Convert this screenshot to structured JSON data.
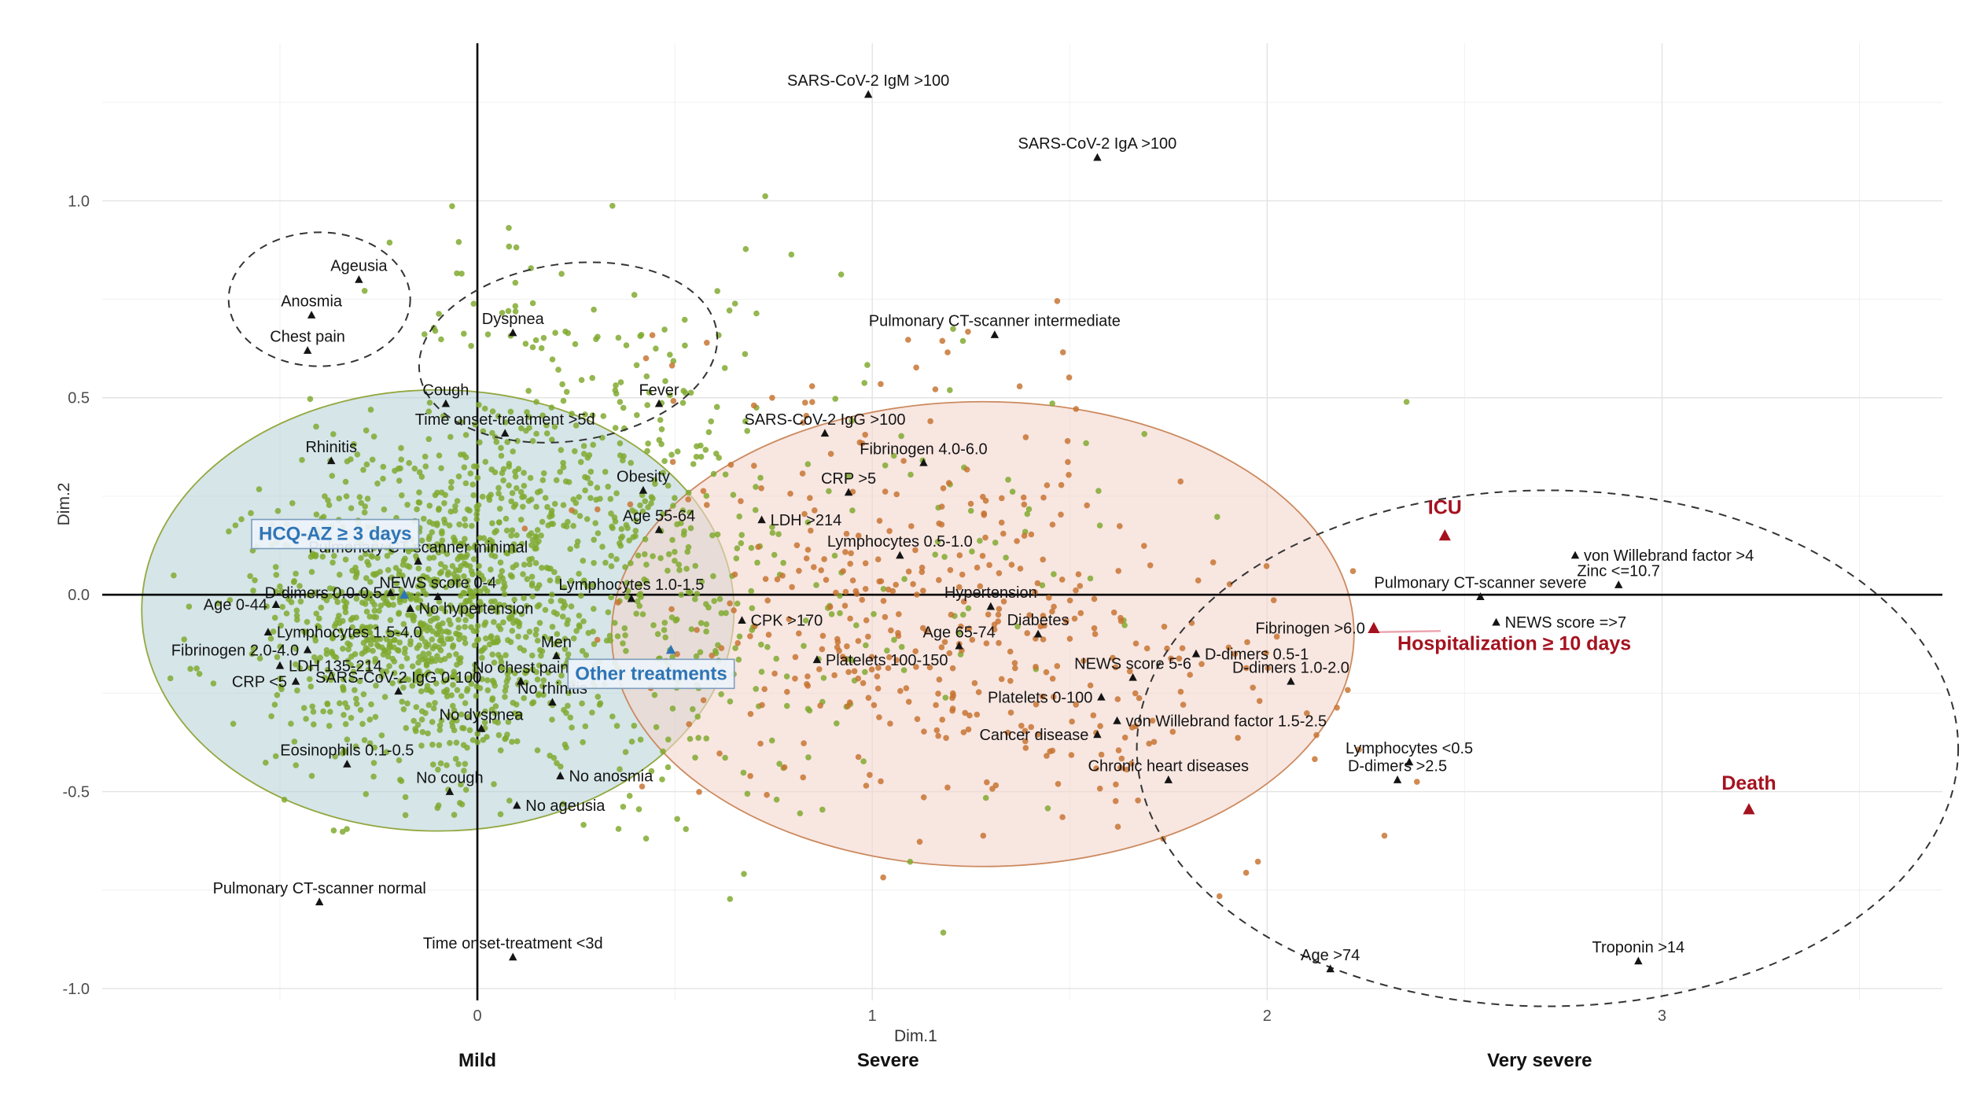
{
  "chart_data": {
    "type": "scatter",
    "xlabel": "Dim.1",
    "ylabel": "Dim.2",
    "xlim": [
      -0.95,
      3.71
    ],
    "ylim": [
      -1.03,
      1.4
    ],
    "seed": 1234567,
    "x_ticks": [
      {
        "value": 0,
        "label": "0"
      },
      {
        "value": 1,
        "label": "1"
      },
      {
        "value": 2,
        "label": "2"
      },
      {
        "value": 3,
        "label": "3"
      }
    ],
    "y_ticks": [
      {
        "value": 1.0,
        "label": "1.0"
      },
      {
        "value": 0.5,
        "label": "0.5"
      },
      {
        "value": 0.0,
        "label": "0.0"
      },
      {
        "value": -0.5,
        "label": "-0.5"
      },
      {
        "value": -1.0,
        "label": "-1.0"
      }
    ],
    "x_minor_ticks": [
      -0.5,
      0.5,
      1.5,
      2.5,
      3.5
    ],
    "y_minor_ticks": [
      -0.75,
      -0.25,
      0.25,
      0.75,
      1.25
    ],
    "severity_labels": [
      {
        "label": "Mild",
        "x": 0.0
      },
      {
        "label": "Severe",
        "x": 1.04
      },
      {
        "label": "Very severe",
        "x": 2.69
      }
    ],
    "colors": {
      "green_points": "#7fa92e",
      "orange_points": "#c77331",
      "category_marker": "#141414",
      "category_text": "#141414",
      "outcome": "#a5121f",
      "treatment": "#2e75b6",
      "leader_line": "#eaa4ae",
      "dashed_ellipse": "#333333",
      "grid_major": "#e3e3e3",
      "grid_minor": "#f0f0f0",
      "axis_line": "#000000",
      "tick_text": "#4d4d4d",
      "ellipse_mild_fill": "#aecdd3",
      "ellipse_mild_stroke": "#93a83f",
      "ellipse_severe_fill": "#f3d6cd",
      "ellipse_severe_stroke": "#cc8a5f"
    },
    "ellipses": [
      {
        "name": "mild-group-ellipse",
        "style": "filled",
        "cx": -0.1,
        "cy": -0.04,
        "rx": 0.75,
        "ry": 0.56,
        "fill": "#aecdd3",
        "opacity": 0.52,
        "stroke": "#93a83f"
      },
      {
        "name": "severe-group-ellipse",
        "style": "filled",
        "cx": 1.28,
        "cy": -0.1,
        "rx": 0.94,
        "ry": 0.59,
        "fill": "#f3d6cd",
        "opacity": 0.6,
        "stroke": "#cc8a5f"
      },
      {
        "name": "anosmia-cluster-ellipse",
        "style": "dashed",
        "cx": -0.4,
        "cy": 0.75,
        "rx": 0.23,
        "ry": 0.17,
        "rotate": 0
      },
      {
        "name": "respiratory-cluster-ellipse",
        "style": "dashed",
        "cx": 0.23,
        "cy": 0.615,
        "rx": 0.38,
        "ry": 0.225,
        "rotate": -8
      },
      {
        "name": "very-severe-ellipse",
        "style": "dashed",
        "cx": 2.71,
        "cy": -0.39,
        "rx": 1.04,
        "ry": 0.655,
        "rotate": 0
      }
    ],
    "point_clusters": [
      {
        "color": "#7fa92e",
        "n": 760,
        "cx": -0.17,
        "cy": -0.07,
        "sx": 0.2,
        "sy": 0.19
      },
      {
        "color": "#7fa92e",
        "n": 430,
        "cx": 0.08,
        "cy": 0.06,
        "sx": 0.22,
        "sy": 0.24
      },
      {
        "color": "#7fa92e",
        "n": 210,
        "cx": 0.33,
        "cy": 0.24,
        "sx": 0.26,
        "sy": 0.22
      },
      {
        "color": "#7fa92e",
        "n": 140,
        "cx": 0.55,
        "cy": -0.17,
        "sx": 0.33,
        "sy": 0.24
      },
      {
        "color": "#7fa92e",
        "n": 95,
        "cx": 0.85,
        "cy": 0.14,
        "sx": 0.45,
        "sy": 0.3
      },
      {
        "color": "#7fa92e",
        "n": 38,
        "cx": 0.28,
        "cy": 0.72,
        "sx": 0.28,
        "sy": 0.14
      },
      {
        "color": "#c77331",
        "n": 200,
        "cx": 1.0,
        "cy": -0.05,
        "sx": 0.3,
        "sy": 0.25
      },
      {
        "color": "#c77331",
        "n": 125,
        "cx": 1.35,
        "cy": -0.16,
        "sx": 0.3,
        "sy": 0.22
      },
      {
        "color": "#c77331",
        "n": 48,
        "cx": 1.72,
        "cy": -0.25,
        "sx": 0.26,
        "sy": 0.2
      },
      {
        "color": "#c77331",
        "n": 18,
        "cx": 0.82,
        "cy": 0.42,
        "sx": 0.28,
        "sy": 0.16
      },
      {
        "color": "#c77331",
        "n": 10,
        "cx": 1.35,
        "cy": 0.55,
        "sx": 0.22,
        "sy": 0.12
      },
      {
        "color": "#c77331",
        "n": 8,
        "cx": 2.15,
        "cy": -0.18,
        "sx": 0.18,
        "sy": 0.16
      }
    ],
    "categories": [
      {
        "label": "SARS-CoV-2 IgM >100",
        "x": 0.99,
        "y": 1.27
      },
      {
        "label": "SARS-CoV-2 IgA >100",
        "x": 1.57,
        "y": 1.11
      },
      {
        "label": "Ageusia",
        "x": -0.3,
        "y": 0.8
      },
      {
        "label": "Anosmia",
        "x": -0.42,
        "y": 0.71
      },
      {
        "label": "Chest pain",
        "x": -0.43,
        "y": 0.62
      },
      {
        "label": "Dyspnea",
        "x": 0.09,
        "y": 0.665
      },
      {
        "label": "Pulmonary CT-scanner intermediate",
        "x": 1.31,
        "y": 0.66
      },
      {
        "label": "Cough",
        "x": -0.08,
        "y": 0.485
      },
      {
        "label": "Fever",
        "x": 0.46,
        "y": 0.485
      },
      {
        "label": "Time onset-treatment >5d",
        "x": 0.07,
        "y": 0.41
      },
      {
        "label": "SARS-CoV-2 IgG >100",
        "x": 0.88,
        "y": 0.41
      },
      {
        "label": "Rhinitis",
        "x": -0.37,
        "y": 0.34
      },
      {
        "label": "Fibrinogen 4.0-6.0",
        "x": 1.13,
        "y": 0.335
      },
      {
        "label": "Obesity",
        "x": 0.42,
        "y": 0.265
      },
      {
        "label": "CRP >5",
        "x": 0.94,
        "y": 0.26
      },
      {
        "label": "Age 55-64",
        "x": 0.46,
        "y": 0.165
      },
      {
        "label": "LDH >214",
        "x": 0.72,
        "y": 0.19,
        "side": "r"
      },
      {
        "label": "Pulmonary CT-scanner minimal",
        "x": -0.15,
        "y": 0.085
      },
      {
        "label": "von Willebrand factor >4",
        "x": 2.78,
        "y": 0.1,
        "side": "r"
      },
      {
        "label": "Zinc <=10.7",
        "x": 2.89,
        "y": 0.025
      },
      {
        "label": "Lymphocytes 0.5-1.0",
        "x": 1.07,
        "y": 0.1
      },
      {
        "label": "D-dimers 0.0-0.5",
        "x": -0.22,
        "y": 0.005,
        "side": "l"
      },
      {
        "label": "NEWS score 0-4",
        "x": -0.1,
        "y": -0.005
      },
      {
        "label": "Pulmonary CT-scanner severe",
        "x": 2.54,
        "y": -0.005
      },
      {
        "label": "Age 0-44",
        "x": -0.51,
        "y": -0.025,
        "side": "l"
      },
      {
        "label": "No hypertension",
        "x": -0.17,
        "y": -0.035,
        "side": "r"
      },
      {
        "label": "Lymphocytes 1.0-1.5",
        "x": 0.39,
        "y": -0.01
      },
      {
        "label": "Hypertension",
        "x": 1.3,
        "y": -0.03
      },
      {
        "label": "Lymphocytes 1.5-4.0",
        "x": -0.53,
        "y": -0.095,
        "side": "r"
      },
      {
        "label": "CPK >170",
        "x": 0.67,
        "y": -0.065,
        "side": "r"
      },
      {
        "label": "Fibrinogen >6.0",
        "x": 2.27,
        "y": -0.085,
        "side": "l"
      },
      {
        "label": "NEWS score =>7",
        "x": 2.58,
        "y": -0.07,
        "side": "r"
      },
      {
        "label": "Diabetes",
        "x": 1.42,
        "y": -0.1
      },
      {
        "label": "Age 65-74",
        "x": 1.22,
        "y": -0.13
      },
      {
        "label": "Men",
        "x": 0.2,
        "y": -0.155
      },
      {
        "label": "Fibrinogen 2.0-4.0",
        "x": -0.43,
        "y": -0.14,
        "side": "l"
      },
      {
        "label": "LDH 135-214",
        "x": -0.5,
        "y": -0.18,
        "side": "r"
      },
      {
        "label": "Platelets 100-150",
        "x": 0.86,
        "y": -0.165,
        "side": "r"
      },
      {
        "label": "D-dimers 0.5-1",
        "x": 1.82,
        "y": -0.15,
        "side": "r"
      },
      {
        "label": "CRP <5",
        "x": -0.46,
        "y": -0.22,
        "side": "l"
      },
      {
        "label": "SARS-CoV-2 IgG 0-100",
        "x": -0.2,
        "y": -0.245
      },
      {
        "label": "NEWS score 5-6",
        "x": 1.66,
        "y": -0.21
      },
      {
        "label": "D-dimers 1.0-2.0",
        "x": 2.06,
        "y": -0.22
      },
      {
        "label": "No chest pain",
        "x": 0.11,
        "y": -0.22
      },
      {
        "label": "No rhinitis",
        "x": 0.19,
        "y": -0.273
      },
      {
        "label": "Platelets 0-100",
        "x": 1.58,
        "y": -0.26,
        "side": "l"
      },
      {
        "label": "von Willebrand factor 1.5-2.5",
        "x": 1.62,
        "y": -0.32,
        "side": "r"
      },
      {
        "label": "No dyspnea",
        "x": 0.01,
        "y": -0.34
      },
      {
        "label": "Cancer disease",
        "x": 1.57,
        "y": -0.355,
        "side": "l"
      },
      {
        "label": "Eosinophils 0.1-0.5",
        "x": -0.33,
        "y": -0.43
      },
      {
        "label": "Lymphocytes <0.5",
        "x": 2.36,
        "y": -0.425
      },
      {
        "label": "D-dimers >2.5",
        "x": 2.33,
        "y": -0.47
      },
      {
        "label": "No anosmia",
        "x": 0.21,
        "y": -0.46,
        "side": "r"
      },
      {
        "label": "Chronic heart diseases",
        "x": 1.75,
        "y": -0.47
      },
      {
        "label": "No cough",
        "x": -0.07,
        "y": -0.5
      },
      {
        "label": "No ageusia",
        "x": 0.1,
        "y": -0.535,
        "side": "r"
      },
      {
        "label": "Pulmonary CT-scanner normal",
        "x": -0.4,
        "y": -0.78
      },
      {
        "label": "Time onset-treatment <3d",
        "x": 0.09,
        "y": -0.92
      },
      {
        "label": "Age >74",
        "x": 2.16,
        "y": -0.95
      },
      {
        "label": "Troponin >14",
        "x": 2.94,
        "y": -0.93
      }
    ],
    "outcomes": [
      {
        "label": "ICU",
        "x": 2.45,
        "y": 0.15,
        "lx": 2.45,
        "ly": 0.205,
        "anchor": "middle"
      },
      {
        "label": "Hospitalization ≥ 10 days",
        "x": 2.27,
        "y": -0.085,
        "lx": 2.33,
        "ly": -0.14,
        "anchor": "start",
        "leader": true
      },
      {
        "label": "Death",
        "x": 3.22,
        "y": -0.545,
        "lx": 3.22,
        "ly": -0.495,
        "anchor": "middle"
      }
    ],
    "treatments": [
      {
        "label": "HCQ-AZ ≥ 3 days",
        "x": -0.185,
        "y": 0.0,
        "lx": -0.36,
        "ly": 0.155
      },
      {
        "label": "Other treatments",
        "x": 0.49,
        "y": -0.14,
        "lx": 0.44,
        "ly": -0.2
      }
    ]
  }
}
